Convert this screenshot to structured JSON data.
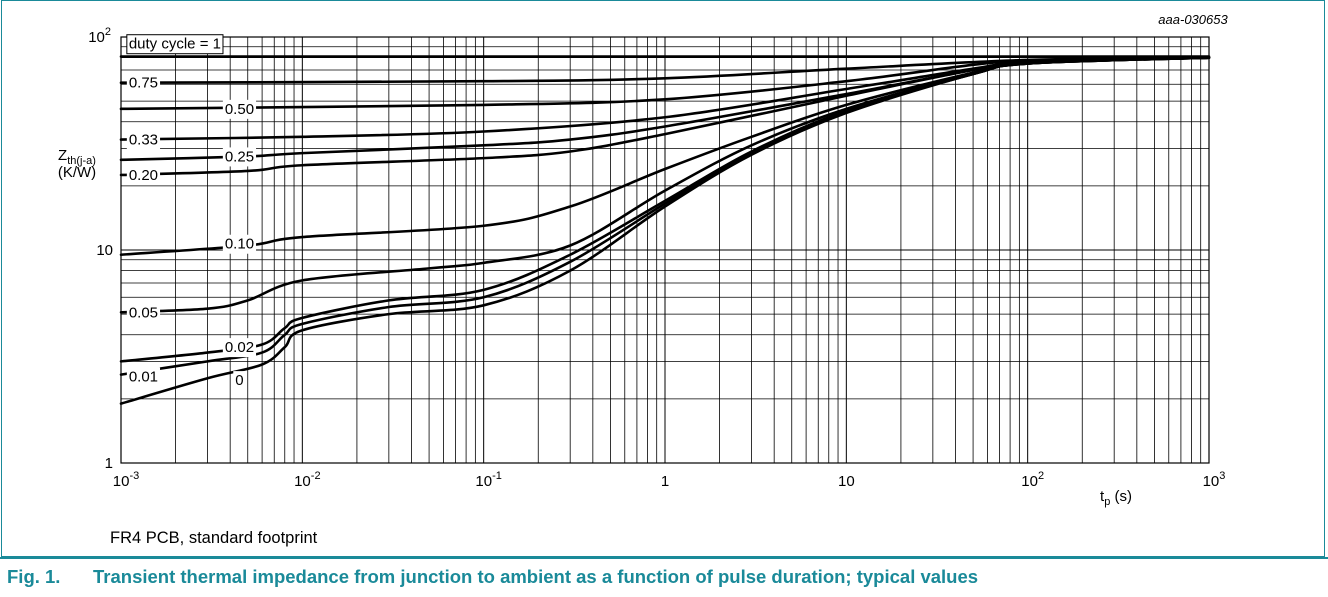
{
  "figure_id": "aaa-030653",
  "note": "FR4 PCB, standard footprint",
  "caption": {
    "number": "Fig. 1.",
    "text": "Transient thermal impedance from junction to ambient as a function of pulse duration; typical values"
  },
  "colors": {
    "accent": "#1a8a99",
    "grid": "#000000",
    "curve": "#000000"
  },
  "chart_data": {
    "type": "line",
    "xscale": "log",
    "yscale": "log",
    "xlim": [
      0.001,
      1000
    ],
    "ylim": [
      1,
      100
    ],
    "grid": true,
    "xlabel": "tp (s)",
    "ylabel": "Zth(j-a) (K/W)",
    "x_ticks": [
      {
        "value": 0.001,
        "base": "10",
        "exp": "-3"
      },
      {
        "value": 0.01,
        "base": "10",
        "exp": "-2"
      },
      {
        "value": 0.1,
        "base": "10",
        "exp": "-1"
      },
      {
        "value": 1,
        "base": "1",
        "exp": ""
      },
      {
        "value": 10,
        "base": "10",
        "exp": ""
      },
      {
        "value": 100,
        "base": "10",
        "exp": "2"
      },
      {
        "value": 1000,
        "base": "10",
        "exp": "3"
      }
    ],
    "y_ticks": [
      {
        "value": 1,
        "base": "1",
        "exp": ""
      },
      {
        "value": 10,
        "base": "10",
        "exp": ""
      },
      {
        "value": 100,
        "base": "10",
        "exp": "2"
      }
    ],
    "series": [
      {
        "name": "duty cycle = 1",
        "points": [
          [
            0.001,
            81
          ],
          [
            1000,
            81
          ]
        ]
      },
      {
        "name": "0.75",
        "points": [
          [
            0.001,
            61
          ],
          [
            0.1,
            62
          ],
          [
            1,
            64
          ],
          [
            10,
            71
          ],
          [
            100,
            78
          ],
          [
            1000,
            80
          ]
        ]
      },
      {
        "name": "0.50",
        "points": [
          [
            0.001,
            46
          ],
          [
            0.1,
            48
          ],
          [
            1,
            51
          ],
          [
            10,
            62
          ],
          [
            50,
            74
          ],
          [
            100,
            77
          ],
          [
            1000,
            80
          ]
        ]
      },
      {
        "name": "0.33",
        "points": [
          [
            0.001,
            33
          ],
          [
            0.01,
            34
          ],
          [
            0.1,
            36
          ],
          [
            1,
            42
          ],
          [
            10,
            57
          ],
          [
            50,
            71
          ],
          [
            100,
            76
          ],
          [
            1000,
            80
          ]
        ]
      },
      {
        "name": "0.25",
        "points": [
          [
            0.001,
            26.5
          ],
          [
            0.005,
            27.5
          ],
          [
            0.01,
            28.5
          ],
          [
            0.1,
            31
          ],
          [
            0.3,
            33
          ],
          [
            1,
            38
          ],
          [
            10,
            54
          ],
          [
            50,
            70
          ],
          [
            100,
            76
          ],
          [
            1000,
            80
          ]
        ]
      },
      {
        "name": "0.20",
        "points": [
          [
            0.001,
            22.5
          ],
          [
            0.005,
            23.5
          ],
          [
            0.01,
            25
          ],
          [
            0.1,
            27
          ],
          [
            0.3,
            29
          ],
          [
            1,
            35
          ],
          [
            10,
            53
          ],
          [
            50,
            70
          ],
          [
            100,
            76
          ],
          [
            1000,
            80
          ]
        ]
      },
      {
        "name": "0.10",
        "points": [
          [
            0.001,
            9.5
          ],
          [
            0.005,
            10.5
          ],
          [
            0.01,
            11.5
          ],
          [
            0.1,
            13
          ],
          [
            0.3,
            16
          ],
          [
            1,
            24
          ],
          [
            3,
            34
          ],
          [
            10,
            48
          ],
          [
            50,
            68
          ],
          [
            100,
            76
          ],
          [
            1000,
            80
          ]
        ]
      },
      {
        "name": "0.05",
        "points": [
          [
            0.001,
            5.1
          ],
          [
            0.003,
            5.3
          ],
          [
            0.005,
            5.8
          ],
          [
            0.01,
            7.2
          ],
          [
            0.05,
            8.2
          ],
          [
            0.1,
            8.7
          ],
          [
            0.3,
            10.5
          ],
          [
            1,
            19
          ],
          [
            3,
            31
          ],
          [
            10,
            46
          ],
          [
            50,
            67
          ],
          [
            100,
            75
          ],
          [
            1000,
            80
          ]
        ]
      },
      {
        "name": "0.02",
        "points": [
          [
            0.001,
            3.0
          ],
          [
            0.003,
            3.3
          ],
          [
            0.006,
            3.6
          ],
          [
            0.008,
            4.3
          ],
          [
            0.01,
            4.8
          ],
          [
            0.03,
            5.8
          ],
          [
            0.1,
            6.5
          ],
          [
            0.3,
            9.5
          ],
          [
            1,
            17
          ],
          [
            3,
            29
          ],
          [
            10,
            45
          ],
          [
            50,
            67
          ],
          [
            100,
            75
          ],
          [
            1000,
            80
          ]
        ]
      },
      {
        "name": "0.01",
        "points": [
          [
            0.001,
            2.6
          ],
          [
            0.003,
            3.0
          ],
          [
            0.006,
            3.3
          ],
          [
            0.008,
            4.0
          ],
          [
            0.01,
            4.5
          ],
          [
            0.03,
            5.4
          ],
          [
            0.1,
            6.0
          ],
          [
            0.3,
            8.8
          ],
          [
            1,
            16.5
          ],
          [
            3,
            28.5
          ],
          [
            10,
            44.5
          ],
          [
            50,
            67
          ],
          [
            100,
            75
          ],
          [
            1000,
            80
          ]
        ]
      },
      {
        "name": "0",
        "points": [
          [
            0.001,
            1.9
          ],
          [
            0.003,
            2.5
          ],
          [
            0.006,
            2.9
          ],
          [
            0.008,
            3.5
          ],
          [
            0.01,
            4.2
          ],
          [
            0.03,
            5.0
          ],
          [
            0.1,
            5.5
          ],
          [
            0.3,
            8.0
          ],
          [
            1,
            16
          ],
          [
            3,
            28
          ],
          [
            10,
            44
          ],
          [
            50,
            67
          ],
          [
            100,
            75
          ],
          [
            1000,
            80
          ]
        ]
      }
    ],
    "curve_labels": [
      {
        "text": "duty cycle = 1",
        "x": 0.00105,
        "y": 93,
        "anchor": "start",
        "boxed": true
      },
      {
        "text": "0.75",
        "x": 0.00105,
        "y": 61,
        "anchor": "start",
        "boxed": false
      },
      {
        "text": "0.50",
        "x": 0.0045,
        "y": 46,
        "anchor": "middle",
        "boxed": false
      },
      {
        "text": "0.33",
        "x": 0.00105,
        "y": 33,
        "anchor": "start",
        "boxed": false
      },
      {
        "text": "0.25",
        "x": 0.0045,
        "y": 27.5,
        "anchor": "middle",
        "boxed": false
      },
      {
        "text": "0.20",
        "x": 0.00105,
        "y": 22.5,
        "anchor": "start",
        "boxed": false
      },
      {
        "text": "0.10",
        "x": 0.0045,
        "y": 10.7,
        "anchor": "middle",
        "boxed": false
      },
      {
        "text": "0.05",
        "x": 0.00105,
        "y": 5.1,
        "anchor": "start",
        "boxed": false
      },
      {
        "text": "0.02",
        "x": 0.0045,
        "y": 3.5,
        "anchor": "middle",
        "boxed": false
      },
      {
        "text": "0.01",
        "x": 0.00105,
        "y": 2.55,
        "anchor": "start",
        "boxed": false
      },
      {
        "text": "0",
        "x": 0.0045,
        "y": 2.45,
        "anchor": "middle",
        "boxed": false
      }
    ]
  }
}
